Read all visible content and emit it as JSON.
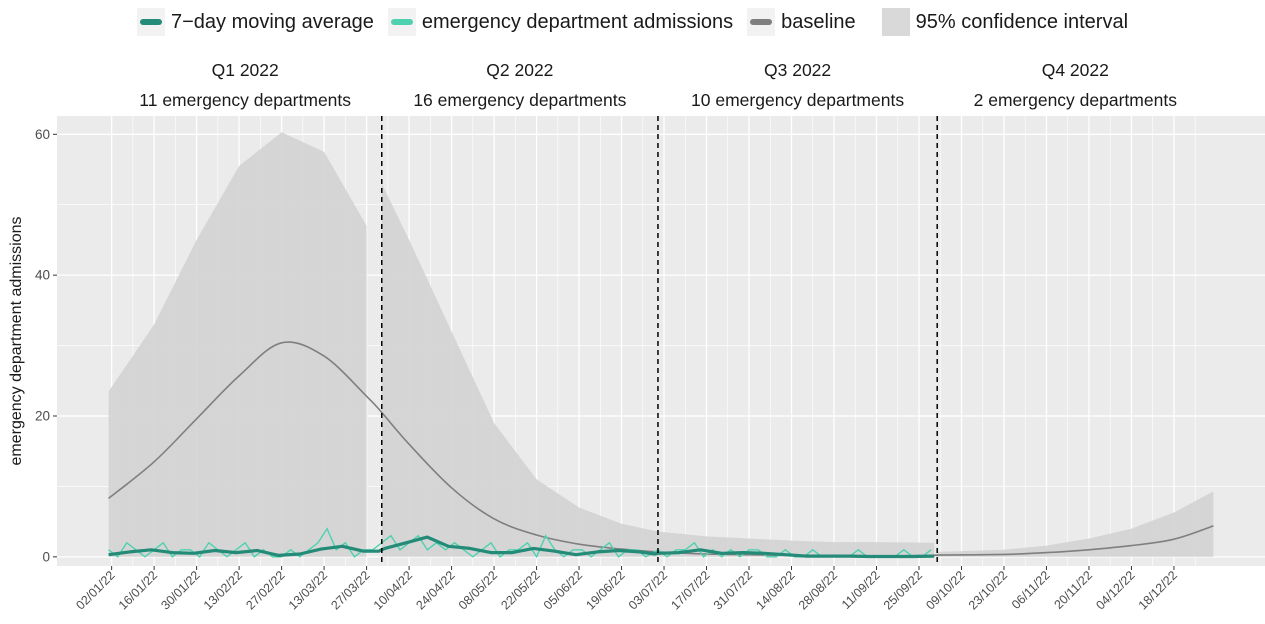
{
  "legend": {
    "moving_average_label": "7−day moving average",
    "admissions_label": "emergency department admissions",
    "baseline_label": "baseline",
    "ci_label": "95% confidence interval"
  },
  "colors": {
    "moving_average": "#238b77",
    "admissions": "#4fd1b0",
    "baseline": "#7f7f7f",
    "ci_band": "#d3d3d3",
    "panel_bg": "#ebebeb",
    "grid": "#ffffff",
    "quarter_line": "#000000"
  },
  "chart_data": {
    "type": "line",
    "xlabel": "",
    "ylabel": "emergency department admissions",
    "ylim": [
      0,
      60
    ],
    "yticks": [
      0,
      20,
      40,
      60
    ],
    "x_range": [
      "2022-01-01",
      "2022-12-31"
    ],
    "x_tick_labels": [
      "02/01/22",
      "16/01/22",
      "30/01/22",
      "13/02/22",
      "27/02/22",
      "13/03/22",
      "27/03/22",
      "10/04/22",
      "24/04/22",
      "08/05/22",
      "22/05/22",
      "05/06/22",
      "19/06/22",
      "03/07/22",
      "17/07/22",
      "31/07/22",
      "14/08/22",
      "28/08/22",
      "11/09/22",
      "25/09/22",
      "09/10/22",
      "23/10/22",
      "06/11/22",
      "20/11/22",
      "04/12/22",
      "18/12/22"
    ],
    "x_tick_dates": [
      "2022-01-02",
      "2022-01-16",
      "2022-01-30",
      "2022-02-13",
      "2022-02-27",
      "2022-03-13",
      "2022-03-27",
      "2022-04-10",
      "2022-04-24",
      "2022-05-08",
      "2022-05-22",
      "2022-06-05",
      "2022-06-19",
      "2022-07-03",
      "2022-07-17",
      "2022-07-31",
      "2022-08-14",
      "2022-08-28",
      "2022-09-11",
      "2022-09-25",
      "2022-10-09",
      "2022-10-23",
      "2022-11-06",
      "2022-11-20",
      "2022-12-04",
      "2022-12-18"
    ],
    "quarter_boundaries": [
      "2022-04-01",
      "2022-07-01",
      "2022-10-01"
    ],
    "quarters": [
      {
        "title": "Q1 2022",
        "subtitle": "11 emergency departments"
      },
      {
        "title": "Q2 2022",
        "subtitle": "16 emergency departments"
      },
      {
        "title": "Q3 2022",
        "subtitle": "10 emergency departments"
      },
      {
        "title": "Q4 2022",
        "subtitle": "2 emergency departments"
      }
    ],
    "series": [
      {
        "name": "baseline",
        "type": "line",
        "x": [
          "2022-01-01",
          "2022-01-16",
          "2022-01-30",
          "2022-02-13",
          "2022-02-27",
          "2022-03-13",
          "2022-03-27",
          "2022-04-01",
          "2022-04-10",
          "2022-04-24",
          "2022-05-08",
          "2022-05-22",
          "2022-06-05",
          "2022-06-19",
          "2022-07-01",
          "2022-07-17",
          "2022-07-31",
          "2022-08-14",
          "2022-08-28",
          "2022-09-11",
          "2022-09-30",
          "2022-10-01",
          "2022-10-23",
          "2022-11-06",
          "2022-11-20",
          "2022-12-04",
          "2022-12-18",
          "2022-12-31"
        ],
        "y": [
          8.3,
          13.5,
          19.6,
          25.7,
          30.4,
          28.5,
          22.8,
          20.5,
          16.0,
          9.8,
          5.4,
          3.1,
          1.8,
          1.1,
          0.7,
          0.4,
          0.3,
          0.2,
          0.15,
          0.12,
          0.2,
          0.25,
          0.35,
          0.6,
          1.0,
          1.6,
          2.5,
          4.4
        ]
      },
      {
        "name": "95% confidence interval",
        "type": "band",
        "x": [
          "2022-01-01",
          "2022-01-16",
          "2022-01-30",
          "2022-02-13",
          "2022-02-27",
          "2022-03-13",
          "2022-03-27",
          "2022-04-01",
          "2022-04-10",
          "2022-04-24",
          "2022-05-08",
          "2022-05-22",
          "2022-06-05",
          "2022-06-19",
          "2022-07-01",
          "2022-07-17",
          "2022-07-31",
          "2022-08-14",
          "2022-08-28",
          "2022-09-11",
          "2022-09-30",
          "2022-10-01",
          "2022-10-23",
          "2022-11-06",
          "2022-11-20",
          "2022-12-04",
          "2022-12-18",
          "2022-12-31"
        ],
        "lower": [
          0,
          0,
          0,
          0,
          0,
          0,
          0,
          0,
          0,
          0,
          0,
          0,
          0,
          0,
          0,
          0,
          0,
          0,
          0,
          0,
          0,
          0,
          0,
          0,
          0,
          0,
          0,
          0
        ],
        "upper": [
          23.5,
          33.0,
          45.0,
          55.5,
          60.3,
          57.5,
          47.0,
          53.0,
          45.0,
          32.0,
          19.0,
          11.0,
          7.0,
          4.7,
          3.6,
          2.9,
          2.6,
          2.3,
          2.1,
          2.1,
          2.0,
          0.7,
          1.0,
          1.6,
          2.6,
          4.0,
          6.3,
          9.3
        ]
      },
      {
        "name": "emergency department admissions",
        "type": "line",
        "x": [
          "2022-01-01",
          "2022-01-04",
          "2022-01-07",
          "2022-01-10",
          "2022-01-13",
          "2022-01-16",
          "2022-01-19",
          "2022-01-22",
          "2022-01-25",
          "2022-01-28",
          "2022-01-31",
          "2022-02-03",
          "2022-02-06",
          "2022-02-09",
          "2022-02-12",
          "2022-02-15",
          "2022-02-18",
          "2022-02-21",
          "2022-02-24",
          "2022-02-27",
          "2022-03-02",
          "2022-03-05",
          "2022-03-08",
          "2022-03-11",
          "2022-03-14",
          "2022-03-17",
          "2022-03-20",
          "2022-03-23",
          "2022-03-26",
          "2022-03-29",
          "2022-04-01",
          "2022-04-04",
          "2022-04-07",
          "2022-04-10",
          "2022-04-13",
          "2022-04-16",
          "2022-04-19",
          "2022-04-22",
          "2022-04-25",
          "2022-04-28",
          "2022-05-01",
          "2022-05-04",
          "2022-05-07",
          "2022-05-10",
          "2022-05-13",
          "2022-05-16",
          "2022-05-19",
          "2022-05-22",
          "2022-05-25",
          "2022-05-28",
          "2022-05-31",
          "2022-06-03",
          "2022-06-06",
          "2022-06-09",
          "2022-06-12",
          "2022-06-15",
          "2022-06-18",
          "2022-06-21",
          "2022-06-24",
          "2022-06-27",
          "2022-07-01",
          "2022-07-04",
          "2022-07-07",
          "2022-07-10",
          "2022-07-13",
          "2022-07-16",
          "2022-07-19",
          "2022-07-22",
          "2022-07-25",
          "2022-07-28",
          "2022-07-31",
          "2022-08-03",
          "2022-08-06",
          "2022-08-09",
          "2022-08-12",
          "2022-08-15",
          "2022-08-18",
          "2022-08-21",
          "2022-08-24",
          "2022-08-27",
          "2022-08-30",
          "2022-09-02",
          "2022-09-05",
          "2022-09-08",
          "2022-09-11",
          "2022-09-14",
          "2022-09-17",
          "2022-09-20",
          "2022-09-23",
          "2022-09-26",
          "2022-09-29"
        ],
        "y": [
          1,
          0,
          2,
          1,
          0,
          1,
          2,
          0,
          1,
          1,
          0,
          2,
          1,
          0,
          1,
          2,
          0,
          1,
          0,
          0,
          1,
          0,
          1,
          2,
          4,
          1,
          2,
          0,
          1,
          1,
          2,
          3,
          1,
          2,
          3,
          1,
          2,
          1,
          2,
          1,
          0,
          1,
          2,
          0,
          1,
          1,
          2,
          0,
          3,
          1,
          0,
          1,
          1,
          0,
          1,
          2,
          0,
          1,
          1,
          0,
          1,
          0,
          1,
          1,
          2,
          0,
          1,
          0,
          1,
          0,
          1,
          1,
          0,
          0,
          1,
          0,
          0,
          1,
          0,
          0,
          0,
          0,
          1,
          0,
          0,
          0,
          0,
          1,
          0,
          0,
          1
        ]
      },
      {
        "name": "7−day moving average",
        "type": "line",
        "x": [
          "2022-01-01",
          "2022-01-08",
          "2022-01-15",
          "2022-01-22",
          "2022-01-29",
          "2022-02-05",
          "2022-02-12",
          "2022-02-19",
          "2022-02-26",
          "2022-03-05",
          "2022-03-12",
          "2022-03-19",
          "2022-03-26",
          "2022-03-31",
          "2022-04-02",
          "2022-04-09",
          "2022-04-16",
          "2022-04-23",
          "2022-04-30",
          "2022-05-07",
          "2022-05-14",
          "2022-05-21",
          "2022-05-28",
          "2022-06-04",
          "2022-06-11",
          "2022-06-18",
          "2022-06-25",
          "2022-06-30",
          "2022-07-01",
          "2022-07-08",
          "2022-07-15",
          "2022-07-22",
          "2022-07-29",
          "2022-08-05",
          "2022-08-12",
          "2022-08-19",
          "2022-08-26",
          "2022-09-02",
          "2022-09-09",
          "2022-09-16",
          "2022-09-23",
          "2022-09-30"
        ],
        "y": [
          0.3,
          0.7,
          1.0,
          0.6,
          0.5,
          0.9,
          0.6,
          0.9,
          0.2,
          0.4,
          1.1,
          1.5,
          0.8,
          0.8,
          1.2,
          2.0,
          2.8,
          1.5,
          1.2,
          0.6,
          0.6,
          1.2,
          0.8,
          0.3,
          0.7,
          0.9,
          0.7,
          0.4,
          0.5,
          0.6,
          1.0,
          0.5,
          0.6,
          0.5,
          0.3,
          0.1,
          0.1,
          0.1,
          0.05,
          0.05,
          0.05,
          0.1
        ]
      }
    ],
    "grid": true,
    "legend_position": "top"
  }
}
